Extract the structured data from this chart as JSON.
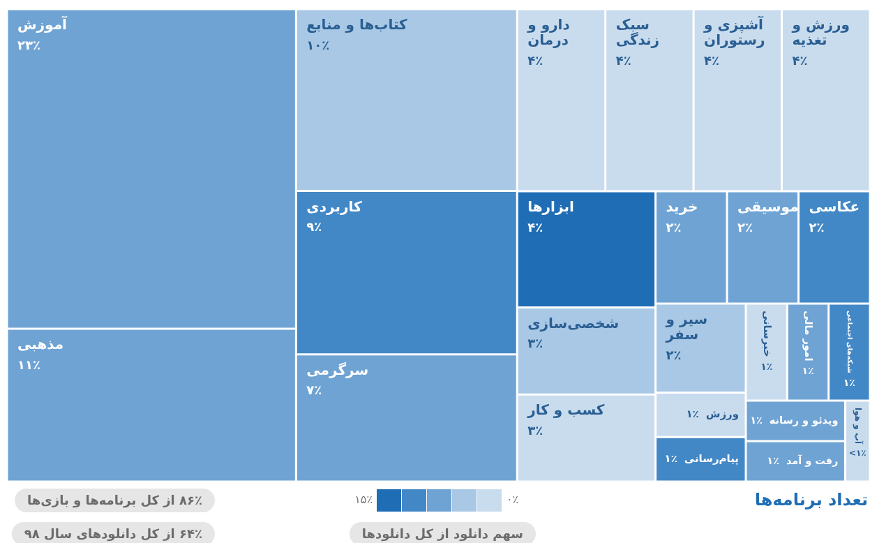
{
  "chart_data": {
    "type": "other",
    "title": "تعداد برنامه‌ها",
    "categories": [
      "آموزش",
      "مذهبی",
      "کتاب‌ها و منابع",
      "کاربردی",
      "سرگرمی",
      "دارو و درمان",
      "سبک زندگی",
      "آشپزی و رستوران",
      "ورزش و تغذیه",
      "ابزارها",
      "شخصی‌سازی",
      "کسب و کار",
      "خرید",
      "موسیقی",
      "عکاسی",
      "سیر و سفر",
      "ورزش",
      "پیام‌رسانی",
      "خبرسانی",
      "امور مالی",
      "شبکه‌های اجتماعی",
      "ویدئو و رسانه",
      "رفت و آمد",
      "آب و هوا"
    ],
    "values": [
      23,
      11,
      10,
      9,
      7,
      4,
      4,
      4,
      4,
      4,
      3,
      3,
      2,
      2,
      2,
      2,
      1,
      1,
      1,
      1,
      1,
      1,
      1,
      0.5
    ],
    "value_labels": [
      "۲۳٪",
      "۱۱٪",
      "۱۰٪",
      "۹٪",
      "۷٪",
      "۴٪",
      "۴٪",
      "۴٪",
      "۴٪",
      "۴٪",
      "۳٪",
      "۳٪",
      "۲٪",
      "۲٪",
      "۲٪",
      "۲٪",
      "۱٪",
      "۱٪",
      "۱٪",
      "۱٪",
      "۱٪",
      "۱٪",
      "۱٪",
      "<۱٪"
    ],
    "colors": [
      "#6fa3d3",
      "#6fa3d3",
      "#a8c8e5",
      "#4388c6",
      "#6fa3d3",
      "#c9dcee",
      "#c9dcee",
      "#c9dcee",
      "#c9dcee",
      "#1f6db5",
      "#a8c8e5",
      "#c9dcee",
      "#6fa3d3",
      "#6fa3d3",
      "#4388c6",
      "#a8c8e5",
      "#c9dcee",
      "#4388c6",
      "#c9dcee",
      "#6fa3d3",
      "#4388c6",
      "#6fa3d3",
      "#6fa3d3",
      "#c9dcee"
    ],
    "clabel": "سهم دانلود از کل دانلودها",
    "annotations": [
      "۸۶٪ از کل برنامه‌ها و بازی‌ها",
      "۶۴٪ از کل دانلودهای سال ۹۸",
      "۱۵٪",
      "۰٪"
    ]
  }
}
